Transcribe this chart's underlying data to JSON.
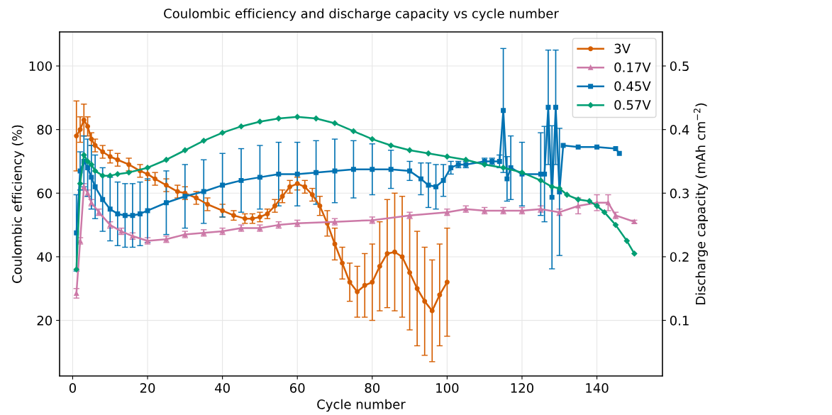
{
  "chart_data": {
    "type": "line",
    "title": "Coulombic efficiency and discharge capacity vs cycle number",
    "xlabel": "Cycle number",
    "ylabel": "Coulombic efficiency (%)",
    "y2label": "Discharge capacity (mAh cm$^{−2}$)",
    "xlim": [
      -3.5,
      157.5
    ],
    "xticks": [
      0,
      20,
      40,
      60,
      80,
      100,
      120,
      140
    ],
    "ylim": [
      2.5,
      110.7
    ],
    "yticks": [
      20,
      40,
      60,
      80,
      100
    ],
    "y2lim": [
      0.0125,
      0.5535
    ],
    "y2ticks": [
      0.1,
      0.2,
      0.3,
      0.4,
      0.5
    ],
    "grid": true,
    "legend": "top right",
    "line_style": "solid",
    "series": [
      {
        "name": "3V",
        "color": "#d55e00",
        "marker": "circle",
        "x": [
          1,
          2,
          3,
          4,
          5,
          6,
          8,
          10,
          12,
          15,
          18,
          20,
          22,
          25,
          28,
          30,
          33,
          36,
          40,
          43,
          46,
          48,
          50,
          52,
          54,
          56,
          58,
          60,
          62,
          64,
          66,
          68,
          70,
          72,
          74,
          76,
          78,
          80,
          82,
          84,
          86,
          88,
          90,
          92,
          94,
          96,
          98,
          100
        ],
        "values": [
          78,
          80,
          83,
          81,
          77,
          75,
          73,
          71.5,
          70.5,
          69,
          67,
          66,
          64.5,
          62.5,
          60.5,
          60,
          58.5,
          56.5,
          54.5,
          53,
          52,
          52,
          52.5,
          53.5,
          56,
          59,
          62,
          63,
          62,
          59.5,
          56,
          50.5,
          44,
          38,
          32,
          29,
          31,
          32,
          37,
          41,
          41.5,
          40,
          35,
          30,
          26,
          23,
          28,
          32
        ],
        "errors": [
          11,
          4,
          5,
          3,
          2,
          2,
          2,
          2,
          2,
          2,
          2,
          2,
          2,
          2,
          2,
          2,
          2,
          2,
          2,
          1.5,
          1.5,
          1.5,
          1.5,
          1.5,
          2,
          2,
          2,
          2,
          2,
          2,
          3,
          4,
          5,
          5,
          6,
          8,
          10,
          12,
          14,
          17,
          18.5,
          19,
          18,
          18,
          17,
          16,
          16,
          17
        ]
      },
      {
        "name": "0.17V",
        "color": "#cc79a7",
        "marker": "triangle",
        "x": [
          1,
          2,
          3,
          4,
          5,
          7,
          10,
          13,
          16,
          20,
          25,
          30,
          35,
          40,
          45,
          50,
          55,
          60,
          70,
          80,
          90,
          100,
          105,
          110,
          115,
          120,
          125,
          130,
          135,
          140,
          143,
          145,
          150
        ],
        "values": [
          28.5,
          45,
          62,
          60,
          57,
          54,
          50,
          48,
          46.5,
          45,
          45.5,
          47,
          47.5,
          48,
          49,
          49,
          50,
          50.5,
          51,
          51.5,
          53,
          54,
          55,
          54.5,
          54.5,
          54.5,
          55,
          54,
          56,
          57,
          57,
          53,
          51
        ],
        "errors": [
          1.5,
          1,
          1,
          1,
          1,
          1,
          1,
          1,
          1,
          1,
          1,
          1,
          1,
          1,
          1,
          1,
          1,
          1,
          1,
          1,
          1,
          1,
          1,
          1,
          1,
          1,
          1,
          1,
          2.5,
          2.5,
          2.5,
          1,
          0.5
        ]
      },
      {
        "name": "0.45V",
        "color": "#0072b2",
        "marker": "square",
        "x": [
          1,
          2,
          3,
          4,
          5,
          6,
          8,
          10,
          12,
          14,
          16,
          18,
          20,
          25,
          30,
          35,
          40,
          45,
          50,
          55,
          60,
          65,
          70,
          75,
          80,
          85,
          90,
          93,
          95,
          97,
          99,
          101,
          103,
          105,
          110,
          112,
          114,
          115,
          116,
          117,
          120,
          125,
          126,
          127,
          128,
          129,
          130,
          131,
          135,
          140,
          145,
          146
        ],
        "values": [
          47.5,
          67,
          70,
          68,
          65,
          62,
          58,
          55,
          53.5,
          53,
          53,
          53.5,
          54.5,
          57,
          59,
          60.5,
          62.5,
          64,
          65,
          66,
          66,
          66.5,
          67,
          67.5,
          67.5,
          67.5,
          67,
          64.5,
          62.5,
          62,
          64,
          68,
          69,
          69,
          70,
          70,
          70,
          86,
          64.5,
          68,
          66,
          66,
          66,
          87,
          58.7,
          87,
          60.4,
          75,
          74.5,
          74.5,
          74,
          72.5
        ],
        "errors": [
          12,
          6,
          8,
          9,
          10,
          10,
          10,
          10,
          10,
          10,
          10,
          10,
          10,
          10,
          10,
          10,
          10,
          10,
          10,
          10,
          10,
          10,
          10,
          9,
          8,
          6,
          3,
          5,
          7,
          7,
          5,
          2,
          1,
          1,
          1,
          1,
          2,
          19.5,
          7,
          10,
          10,
          13,
          15,
          18,
          22.5,
          18,
          20,
          null,
          null,
          null,
          null,
          null
        ]
      },
      {
        "name": "0.57V",
        "color": "#009e73",
        "marker": "diamond",
        "x": [
          1,
          2,
          3,
          4,
          5,
          6,
          8,
          10,
          12,
          15,
          20,
          25,
          30,
          35,
          40,
          45,
          50,
          55,
          60,
          65,
          70,
          75,
          80,
          85,
          90,
          95,
          100,
          105,
          110,
          115,
          120,
          125,
          128,
          130,
          132,
          135,
          138,
          140,
          142,
          145,
          148,
          150
        ],
        "values": [
          36,
          63,
          72,
          70,
          69,
          67,
          65.5,
          65.5,
          66,
          66.5,
          68,
          70.5,
          73.5,
          76.5,
          79,
          81,
          82.5,
          83.5,
          84,
          83.5,
          82,
          79.5,
          77,
          75,
          73.5,
          72.5,
          71.5,
          70.5,
          69,
          68,
          66.5,
          64,
          62,
          61.5,
          59.5,
          58,
          57.5,
          56,
          54,
          50,
          45,
          41
        ]
      }
    ]
  }
}
